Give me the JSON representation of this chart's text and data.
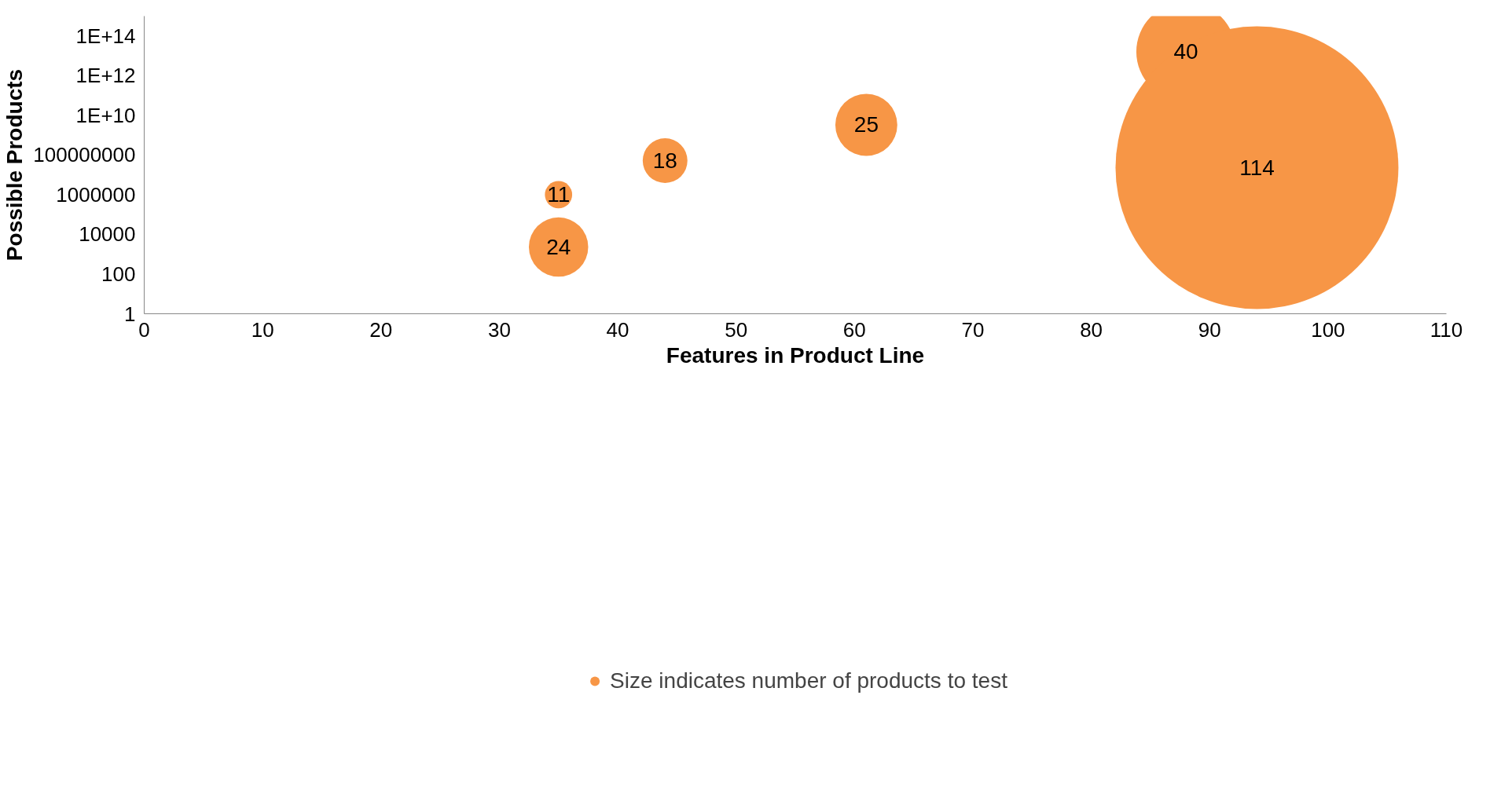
{
  "chart_data": {
    "type": "bubble",
    "xlabel": "Features in Product Line",
    "ylabel": "Possible Products",
    "x": [
      88,
      94,
      61,
      44,
      35,
      35
    ],
    "series": [
      {
        "name": "Size indicates number of products to test",
        "color": "#f79646",
        "values": [
          16000000000000,
          23000000,
          3300000000,
          52000000,
          1000000,
          2300
        ],
        "sizes": [
          0.123,
          1,
          0.048,
          0.025,
          0.0093,
          0.044
        ]
      }
    ],
    "annotations": [
      {
        "text": "40",
        "x": 88,
        "y": 16000000000000
      },
      {
        "text": "114",
        "x": 94,
        "y": 23000000
      },
      {
        "text": "25",
        "x": 61,
        "y": 3300000000
      },
      {
        "text": "18",
        "x": 44,
        "y": 52000000
      },
      {
        "text": "11",
        "x": 35,
        "y": 1000000
      },
      {
        "text": "24",
        "x": 35,
        "y": 2300
      }
    ],
    "log": "y",
    "xlim": [
      0,
      110
    ],
    "xticks": [
      0,
      10,
      20,
      30,
      40,
      50,
      60,
      70,
      80,
      90,
      100,
      110
    ],
    "ylim": [
      1,
      1000000000000000
    ],
    "yticks": [
      1,
      100,
      10000,
      1000000,
      100000000,
      {
        "value": 10000000000,
        "label": "1E+10"
      },
      {
        "value": 1000000000000,
        "label": "1E+12"
      },
      {
        "value": 100000000000000,
        "label": "1E+14"
      }
    ],
    "grid": false,
    "legend": "bottom"
  }
}
